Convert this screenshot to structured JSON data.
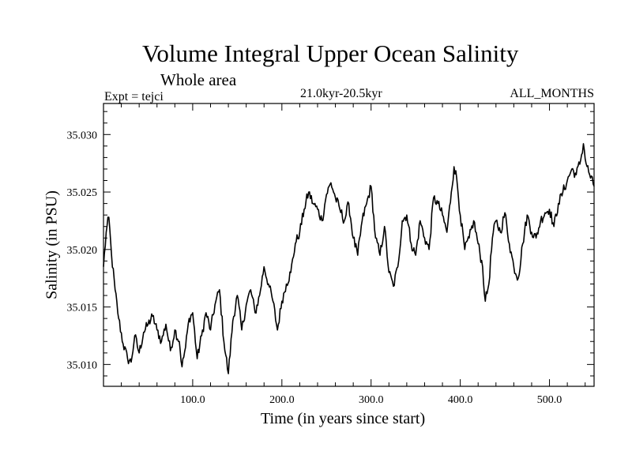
{
  "chart_data": {
    "type": "line",
    "title": "Volume Integral Upper Ocean Salinity",
    "subtitle": "Whole area",
    "experiment": "Expt = tejci",
    "period": "21.0kyr-20.5kyr",
    "months": "ALL_MONTHS",
    "xlabel": "Time (in years since start)",
    "ylabel": "Salinity (in PSU)",
    "xlim": [
      0,
      550
    ],
    "ylim": [
      35.0081,
      35.0327
    ],
    "xticks": [
      100,
      200,
      300,
      400,
      500
    ],
    "xtick_labels": [
      "100.0",
      "200.0",
      "300.0",
      "400.0",
      "500.0"
    ],
    "yticks": [
      35.01,
      35.015,
      35.02,
      35.025,
      35.03
    ],
    "ytick_labels": [
      "35.010",
      "35.015",
      "35.020",
      "35.025",
      "35.030"
    ],
    "series": [
      {
        "name": "salinity",
        "x": [
          0,
          3,
          6,
          9,
          13,
          17,
          22,
          27,
          31,
          35,
          40,
          45,
          50,
          55,
          60,
          65,
          70,
          75,
          80,
          85,
          88,
          92,
          96,
          100,
          105,
          110,
          115,
          120,
          125,
          130,
          135,
          140,
          145,
          150,
          155,
          160,
          165,
          170,
          175,
          180,
          185,
          190,
          195,
          200,
          205,
          210,
          215,
          220,
          225,
          230,
          235,
          240,
          245,
          250,
          255,
          260,
          265,
          270,
          275,
          280,
          285,
          290,
          295,
          300,
          305,
          310,
          315,
          320,
          325,
          330,
          335,
          340,
          345,
          350,
          355,
          360,
          365,
          370,
          375,
          380,
          385,
          390,
          393,
          396,
          400,
          405,
          410,
          415,
          420,
          425,
          428,
          432,
          436,
          440,
          445,
          450,
          455,
          460,
          465,
          470,
          475,
          480,
          485,
          490,
          495,
          500,
          505,
          510,
          515,
          520,
          525,
          530,
          535,
          538,
          541,
          545,
          550
        ],
        "values": [
          35.0185,
          35.0215,
          35.0228,
          35.0195,
          35.0165,
          35.014,
          35.0118,
          35.0105,
          35.0102,
          35.0125,
          35.011,
          35.0128,
          35.0135,
          35.0142,
          35.013,
          35.012,
          35.0135,
          35.0112,
          35.013,
          35.012,
          35.0098,
          35.0115,
          35.014,
          35.0145,
          35.0105,
          35.0125,
          35.0145,
          35.013,
          35.0152,
          35.0165,
          35.012,
          35.0092,
          35.0138,
          35.016,
          35.013,
          35.0152,
          35.0165,
          35.0145,
          35.016,
          35.0185,
          35.017,
          35.0155,
          35.013,
          35.0155,
          35.017,
          35.018,
          35.0205,
          35.0215,
          35.0235,
          35.025,
          35.024,
          35.0235,
          35.0225,
          35.0248,
          35.0258,
          35.0245,
          35.0235,
          35.0225,
          35.024,
          35.021,
          35.0195,
          35.0225,
          35.024,
          35.0255,
          35.021,
          35.0195,
          35.022,
          35.018,
          35.0168,
          35.0185,
          35.0225,
          35.023,
          35.0205,
          35.0195,
          35.0225,
          35.021,
          35.02,
          35.0245,
          35.024,
          35.023,
          35.0215,
          35.025,
          35.0272,
          35.0262,
          35.023,
          35.02,
          35.021,
          35.0225,
          35.0205,
          35.0185,
          35.0155,
          35.017,
          35.021,
          35.0225,
          35.0215,
          35.0232,
          35.0205,
          35.0185,
          35.0175,
          35.0205,
          35.023,
          35.0215,
          35.021,
          35.0225,
          35.0232,
          35.0235,
          35.022,
          35.024,
          35.025,
          35.026,
          35.027,
          35.0265,
          35.0278,
          35.0292,
          35.0275,
          35.0265,
          35.0255
        ]
      }
    ]
  }
}
